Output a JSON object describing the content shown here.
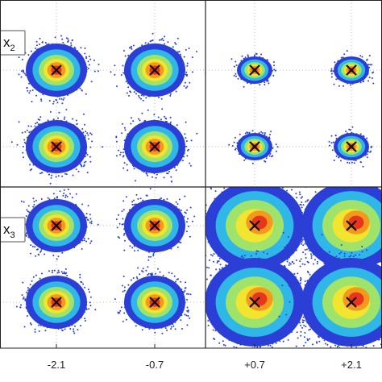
{
  "chart_data": {
    "type": "scatter",
    "description_panels": "2x2 grid of constellation scatter panels",
    "x_ticks": [
      "-2.1",
      "-0.7",
      "+0.7",
      "+2.1"
    ],
    "grid": true,
    "panels": [
      {
        "label": "x",
        "label_sub": "2",
        "clusters": [
          {
            "x": -2.1,
            "y": 1,
            "spread": "wide"
          },
          {
            "x": -0.7,
            "y": 1,
            "spread": "wide"
          },
          {
            "x": -2.1,
            "y": 0,
            "spread": "wide"
          },
          {
            "x": -0.7,
            "y": 0,
            "spread": "wide"
          }
        ]
      },
      {
        "label": "",
        "label_sub": "",
        "clusters": [
          {
            "x": 0.7,
            "y": 1,
            "spread": "tight"
          },
          {
            "x": 2.1,
            "y": 1,
            "spread": "tight"
          },
          {
            "x": 0.7,
            "y": 0,
            "spread": "tight"
          },
          {
            "x": 2.1,
            "y": 0,
            "spread": "tight"
          }
        ]
      },
      {
        "label": "x",
        "label_sub": "3",
        "clusters": [
          {
            "x": -2.1,
            "y": 1,
            "spread": "wide"
          },
          {
            "x": -0.7,
            "y": 1,
            "spread": "wide"
          },
          {
            "x": -2.1,
            "y": 0,
            "spread": "wide"
          },
          {
            "x": -0.7,
            "y": 0,
            "spread": "wide"
          }
        ]
      },
      {
        "label": "",
        "label_sub": "",
        "clusters": [
          {
            "x": 0.7,
            "y": 1,
            "spread": "very-wide"
          },
          {
            "x": 2.1,
            "y": 1,
            "spread": "very-wide"
          },
          {
            "x": 0.7,
            "y": 0,
            "spread": "very-wide"
          },
          {
            "x": 2.1,
            "y": 0,
            "spread": "very-wide"
          }
        ]
      }
    ],
    "marker": "x",
    "colors": {
      "outer": "#2b3fd6",
      "ring1": "#2fb7e8",
      "ring2": "#9fe36a",
      "ring3": "#f2e530",
      "ring4": "#f39a1e",
      "core": "#e8361c",
      "marker": "#111111",
      "frame": "#222222",
      "grid": "#b9b9b9"
    }
  }
}
